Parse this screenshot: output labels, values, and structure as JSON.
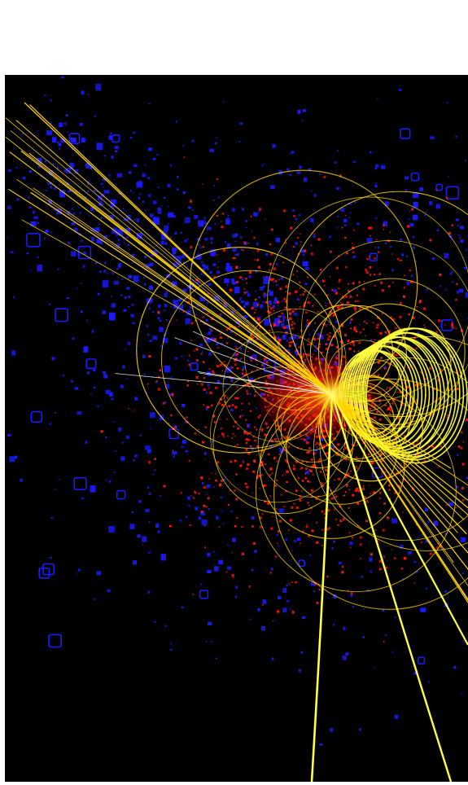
{
  "image": {
    "subject": "particle-collision-event-display",
    "colors": {
      "page_background": "#ffffff",
      "canvas_background": "#000000",
      "calorimeter_hits": "#1a1aff",
      "tracker_hits": "#ff1a0a",
      "tracks": "#ffd400",
      "tracks_bright": "#ffff40",
      "thin_tracks": "#ffffff"
    }
  }
}
